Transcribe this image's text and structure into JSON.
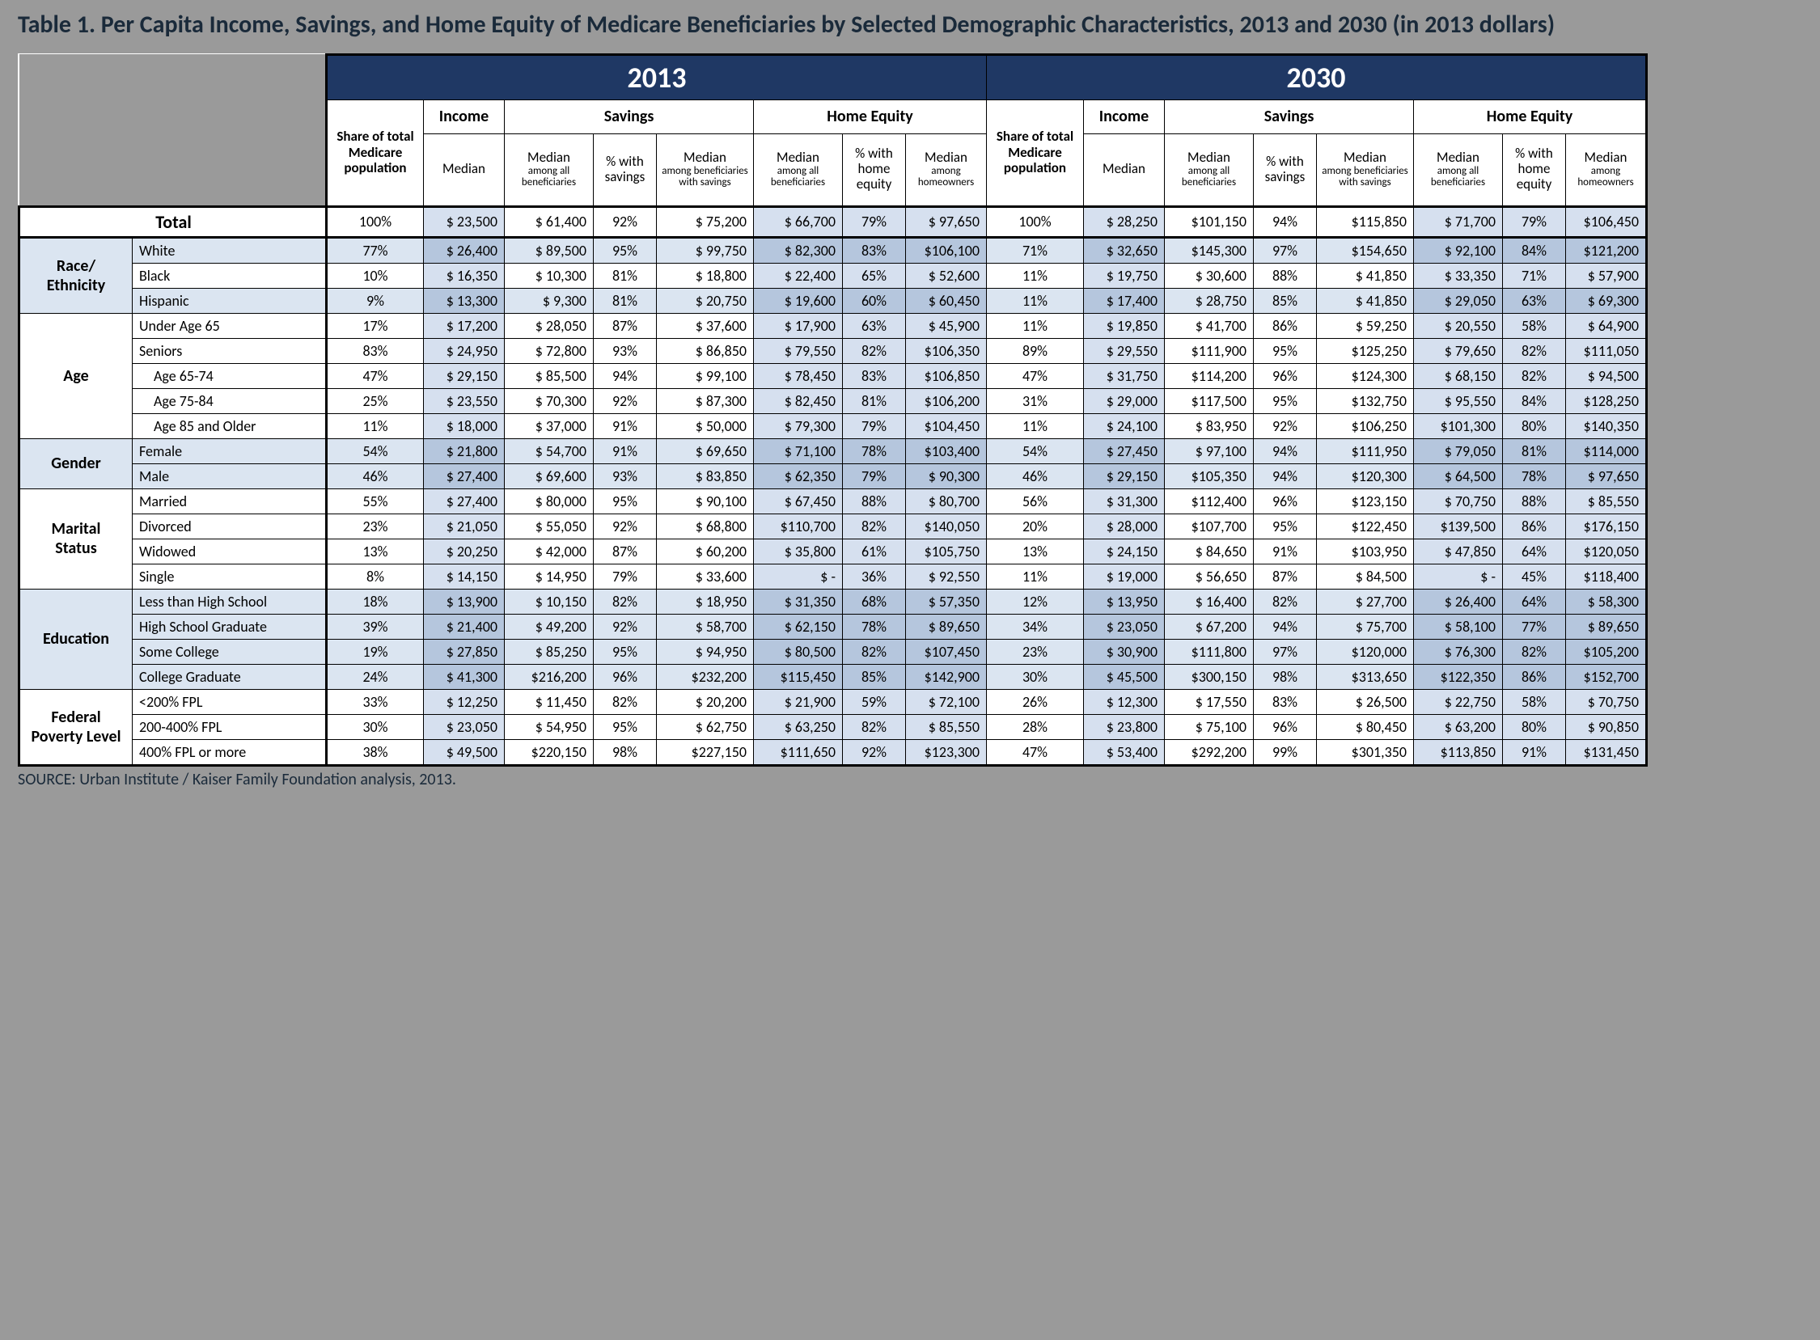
{
  "header": {
    "title": "Table 1. Per Capita Income, Savings, and Home Equity of Medicare Beneficiaries by Selected Demographic Characteristics, 2013 and 2030 (in 2013 dollars)",
    "source": "SOURCE: Urban Institute / Kaiser Family Foundation analysis, 2013."
  },
  "years": {
    "a": "2013",
    "b": "2030"
  },
  "columns": {
    "share": "Share of total Medicare population",
    "income": "Income",
    "income_sub": "Median",
    "savings": "Savings",
    "sav_med_all": "Median",
    "sav_med_all2": "among all beneficiaries",
    "sav_pct": "% with savings",
    "sav_med_with": "Median",
    "sav_med_with2": "among beneficiaries with savings",
    "home": "Home Equity",
    "he_med_all": "Median",
    "he_med_all2": "among all beneficiaries",
    "he_pct": "% with home equity",
    "he_med_own": "Median",
    "he_med_own2": "among homeowners"
  },
  "groups": [
    {
      "name": "Total",
      "rows": [
        {
          "label": "Total",
          "indent": false,
          "a": [
            "100%",
            "$ 23,500",
            "$ 61,400",
            "92%",
            "$ 75,200",
            "$ 66,700",
            "79%",
            "$ 97,650"
          ],
          "b": [
            "100%",
            "$ 28,250",
            "$101,150",
            "94%",
            "$115,850",
            "$ 71,700",
            "79%",
            "$106,450"
          ]
        }
      ]
    },
    {
      "name": "Race/ Ethnicity",
      "rows": [
        {
          "label": "White",
          "band": true,
          "a": [
            "77%",
            "$ 26,400",
            "$ 89,500",
            "95%",
            "$ 99,750",
            "$ 82,300",
            "83%",
            "$106,100"
          ],
          "b": [
            "71%",
            "$ 32,650",
            "$145,300",
            "97%",
            "$154,650",
            "$ 92,100",
            "84%",
            "$121,200"
          ]
        },
        {
          "label": "Black",
          "a": [
            "10%",
            "$ 16,350",
            "$ 10,300",
            "81%",
            "$ 18,800",
            "$ 22,400",
            "65%",
            "$ 52,600"
          ],
          "b": [
            "11%",
            "$ 19,750",
            "$ 30,600",
            "88%",
            "$ 41,850",
            "$ 33,350",
            "71%",
            "$ 57,900"
          ]
        },
        {
          "label": "Hispanic",
          "band": true,
          "a": [
            "9%",
            "$ 13,300",
            "$  9,300",
            "81%",
            "$ 20,750",
            "$ 19,600",
            "60%",
            "$ 60,450"
          ],
          "b": [
            "11%",
            "$ 17,400",
            "$ 28,750",
            "85%",
            "$ 41,850",
            "$ 29,050",
            "63%",
            "$ 69,300"
          ]
        }
      ]
    },
    {
      "name": "Age",
      "rows": [
        {
          "label": "Under Age 65",
          "a": [
            "17%",
            "$ 17,200",
            "$ 28,050",
            "87%",
            "$ 37,600",
            "$ 17,900",
            "63%",
            "$ 45,900"
          ],
          "b": [
            "11%",
            "$ 19,850",
            "$ 41,700",
            "86%",
            "$ 59,250",
            "$ 20,550",
            "58%",
            "$ 64,900"
          ]
        },
        {
          "label": "Seniors",
          "a": [
            "83%",
            "$ 24,950",
            "$ 72,800",
            "93%",
            "$ 86,850",
            "$ 79,550",
            "82%",
            "$106,350"
          ],
          "b": [
            "89%",
            "$ 29,550",
            "$111,900",
            "95%",
            "$125,250",
            "$ 79,650",
            "82%",
            "$111,050"
          ]
        },
        {
          "label": "Age 65-74",
          "indent": true,
          "a": [
            "47%",
            "$ 29,150",
            "$ 85,500",
            "94%",
            "$ 99,100",
            "$ 78,450",
            "83%",
            "$106,850"
          ],
          "b": [
            "47%",
            "$ 31,750",
            "$114,200",
            "96%",
            "$124,300",
            "$ 68,150",
            "82%",
            "$ 94,500"
          ]
        },
        {
          "label": "Age 75-84",
          "indent": true,
          "a": [
            "25%",
            "$ 23,550",
            "$ 70,300",
            "92%",
            "$ 87,300",
            "$ 82,450",
            "81%",
            "$106,200"
          ],
          "b": [
            "31%",
            "$ 29,000",
            "$117,500",
            "95%",
            "$132,750",
            "$ 95,550",
            "84%",
            "$128,250"
          ]
        },
        {
          "label": "Age 85 and Older",
          "indent": true,
          "a": [
            "11%",
            "$ 18,000",
            "$ 37,000",
            "91%",
            "$ 50,000",
            "$ 79,300",
            "79%",
            "$104,450"
          ],
          "b": [
            "11%",
            "$ 24,100",
            "$ 83,950",
            "92%",
            "$106,250",
            "$101,300",
            "80%",
            "$140,350"
          ]
        }
      ]
    },
    {
      "name": "Gender",
      "rows": [
        {
          "label": "Female",
          "band": true,
          "a": [
            "54%",
            "$ 21,800",
            "$ 54,700",
            "91%",
            "$ 69,650",
            "$ 71,100",
            "78%",
            "$103,400"
          ],
          "b": [
            "54%",
            "$ 27,450",
            "$ 97,100",
            "94%",
            "$111,950",
            "$ 79,050",
            "81%",
            "$114,000"
          ]
        },
        {
          "label": "Male",
          "band": true,
          "a": [
            "46%",
            "$ 27,400",
            "$ 69,600",
            "93%",
            "$ 83,850",
            "$ 62,350",
            "79%",
            "$ 90,300"
          ],
          "b": [
            "46%",
            "$ 29,150",
            "$105,350",
            "94%",
            "$120,300",
            "$ 64,500",
            "78%",
            "$ 97,650"
          ]
        }
      ]
    },
    {
      "name": "Marital Status",
      "rows": [
        {
          "label": "Married",
          "a": [
            "55%",
            "$ 27,400",
            "$ 80,000",
            "95%",
            "$ 90,100",
            "$ 67,450",
            "88%",
            "$ 80,700"
          ],
          "b": [
            "56%",
            "$ 31,300",
            "$112,400",
            "96%",
            "$123,150",
            "$ 70,750",
            "88%",
            "$ 85,550"
          ]
        },
        {
          "label": "Divorced",
          "a": [
            "23%",
            "$ 21,050",
            "$ 55,050",
            "92%",
            "$ 68,800",
            "$110,700",
            "82%",
            "$140,050"
          ],
          "b": [
            "20%",
            "$ 28,000",
            "$107,700",
            "95%",
            "$122,450",
            "$139,500",
            "86%",
            "$176,150"
          ]
        },
        {
          "label": "Widowed",
          "a": [
            "13%",
            "$ 20,250",
            "$ 42,000",
            "87%",
            "$ 60,200",
            "$ 35,800",
            "61%",
            "$105,750"
          ],
          "b": [
            "13%",
            "$ 24,150",
            "$ 84,650",
            "91%",
            "$103,950",
            "$ 47,850",
            "64%",
            "$120,050"
          ]
        },
        {
          "label": "Single",
          "a": [
            "8%",
            "$ 14,150",
            "$ 14,950",
            "79%",
            "$ 33,600",
            "$      -",
            "36%",
            "$ 92,550"
          ],
          "b": [
            "11%",
            "$ 19,000",
            "$ 56,650",
            "87%",
            "$ 84,500",
            "$      -",
            "45%",
            "$118,400"
          ]
        }
      ]
    },
    {
      "name": "Education",
      "rows": [
        {
          "label": "Less than High School",
          "band": true,
          "a": [
            "18%",
            "$ 13,900",
            "$ 10,150",
            "82%",
            "$ 18,950",
            "$ 31,350",
            "68%",
            "$ 57,350"
          ],
          "b": [
            "12%",
            "$ 13,950",
            "$ 16,400",
            "82%",
            "$ 27,700",
            "$ 26,400",
            "64%",
            "$ 58,300"
          ]
        },
        {
          "label": "High School Graduate",
          "band": true,
          "a": [
            "39%",
            "$ 21,400",
            "$ 49,200",
            "92%",
            "$ 58,700",
            "$ 62,150",
            "78%",
            "$ 89,650"
          ],
          "b": [
            "34%",
            "$ 23,050",
            "$ 67,200",
            "94%",
            "$ 75,700",
            "$ 58,100",
            "77%",
            "$ 89,650"
          ]
        },
        {
          "label": "Some College",
          "band": true,
          "a": [
            "19%",
            "$ 27,850",
            "$ 85,250",
            "95%",
            "$ 94,950",
            "$ 80,500",
            "82%",
            "$107,450"
          ],
          "b": [
            "23%",
            "$ 30,900",
            "$111,800",
            "97%",
            "$120,000",
            "$ 76,300",
            "82%",
            "$105,200"
          ]
        },
        {
          "label": "College Graduate",
          "band": true,
          "a": [
            "24%",
            "$ 41,300",
            "$216,200",
            "96%",
            "$232,200",
            "$115,450",
            "85%",
            "$142,900"
          ],
          "b": [
            "30%",
            "$ 45,500",
            "$300,150",
            "98%",
            "$313,650",
            "$122,350",
            "86%",
            "$152,700"
          ]
        }
      ]
    },
    {
      "name": "Federal Poverty Level",
      "rows": [
        {
          "label": "<200% FPL",
          "a": [
            "33%",
            "$ 12,250",
            "$ 11,450",
            "82%",
            "$ 20,200",
            "$ 21,900",
            "59%",
            "$ 72,100"
          ],
          "b": [
            "26%",
            "$ 12,300",
            "$ 17,550",
            "83%",
            "$ 26,500",
            "$ 22,750",
            "58%",
            "$ 70,750"
          ]
        },
        {
          "label": "200-400% FPL",
          "a": [
            "30%",
            "$ 23,050",
            "$ 54,950",
            "95%",
            "$ 62,750",
            "$ 63,250",
            "82%",
            "$ 85,550"
          ],
          "b": [
            "28%",
            "$ 23,800",
            "$ 75,100",
            "96%",
            "$ 80,450",
            "$ 63,200",
            "80%",
            "$ 90,850"
          ]
        },
        {
          "label": "400% FPL or more",
          "a": [
            "38%",
            "$ 49,500",
            "$220,150",
            "98%",
            "$227,150",
            "$111,650",
            "92%",
            "$123,300"
          ],
          "b": [
            "47%",
            "$ 53,400",
            "$292,200",
            "99%",
            "$301,350",
            "$113,850",
            "91%",
            "$131,450"
          ]
        }
      ]
    }
  ],
  "style": {
    "colw": {
      "grp": 140,
      "label": 240,
      "share": 120,
      "income": 100,
      "sav1": 110,
      "sav2": 78,
      "sav3": 120,
      "he1": 110,
      "he2": 78,
      "he3": 100
    }
  }
}
